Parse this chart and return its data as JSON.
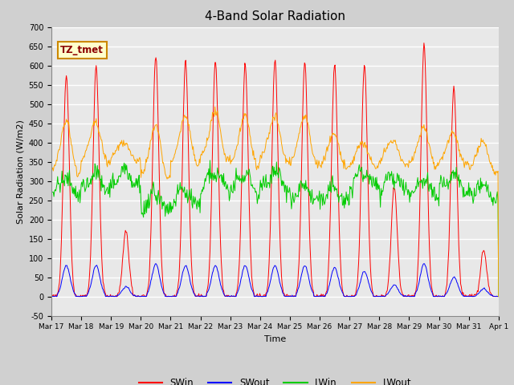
{
  "title": "4-Band Solar Radiation",
  "ylabel": "Solar Radiation (W/m2)",
  "xlabel": "Time",
  "ylim": [
    -50,
    700
  ],
  "colors": {
    "SWin": "#ff0000",
    "SWout": "#0000ff",
    "LWin": "#00cc00",
    "LWout": "#ffa500"
  },
  "n_days": 15,
  "start_day": 17,
  "swin_peaks": [
    575,
    600,
    170,
    625,
    610,
    610,
    605,
    615,
    610,
    605,
    600,
    285,
    655,
    540,
    120
  ],
  "swout_peaks": [
    80,
    80,
    25,
    85,
    80,
    80,
    80,
    80,
    80,
    75,
    65,
    30,
    85,
    50,
    20
  ],
  "lwin_base": [
    285,
    295,
    310,
    245,
    255,
    300,
    295,
    300,
    265,
    265,
    305,
    295,
    280,
    295,
    270
  ],
  "lwout_base": [
    335,
    365,
    370,
    325,
    360,
    375,
    360,
    370,
    360,
    350,
    355,
    360,
    355,
    360,
    340
  ],
  "lwout_day_peak": [
    110,
    75,
    15,
    110,
    100,
    95,
    100,
    90,
    100,
    60,
    30,
    30,
    75,
    50,
    50
  ],
  "annotation": "TZ_tmet",
  "fig_bg": "#d0d0d0",
  "ax_bg": "#e8e8e8",
  "grid_color": "#ffffff"
}
